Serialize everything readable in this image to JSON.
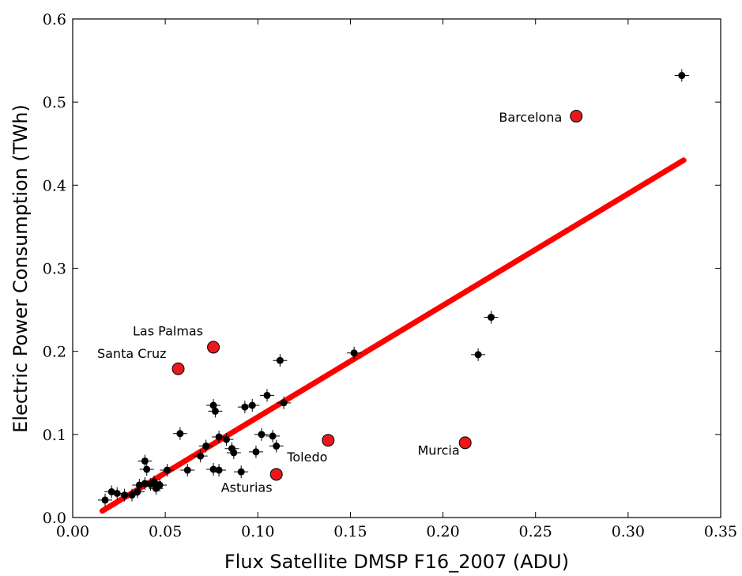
{
  "chart_data": {
    "type": "scatter",
    "xlabel": "Flux Satellite DMSP F16_2007 (ADU)",
    "ylabel": "Electric Power Consumption (TWh)",
    "xlim": [
      0,
      0.35
    ],
    "ylim": [
      0,
      0.6
    ],
    "xticks": [
      {
        "value": 0,
        "label": "0.00"
      },
      0.05,
      {
        "value": 0.1,
        "label": "0.10"
      },
      0.15,
      {
        "value": 0.2,
        "label": "0.20"
      },
      0.25,
      {
        "value": 0.3,
        "label": "0.30"
      },
      0.35
    ],
    "yticks": [
      {
        "value": 0,
        "label": "0.0"
      },
      0.1,
      0.2,
      0.3,
      0.4,
      0.5,
      0.6
    ],
    "series": [
      {
        "color": "#000000",
        "x": [
          0.0175,
          0.021,
          0.024,
          0.028,
          0.032,
          0.035,
          0.036,
          0.039,
          0.039,
          0.04,
          0.042,
          0.044,
          0.045,
          0.047,
          0.051,
          0.058,
          0.062,
          0.069,
          0.072,
          0.076,
          0.076,
          0.077,
          0.079,
          0.079,
          0.083,
          0.086,
          0.087,
          0.091,
          0.093,
          0.097,
          0.099,
          0.102,
          0.105,
          0.108,
          0.11,
          0.112,
          0.114,
          0.152,
          0.219,
          0.226,
          0.329
        ],
        "values": [
          0.021,
          0.031,
          0.029,
          0.027,
          0.027,
          0.031,
          0.039,
          0.041,
          0.068,
          0.058,
          0.04,
          0.043,
          0.035,
          0.039,
          0.057,
          0.101,
          0.057,
          0.074,
          0.086,
          0.058,
          0.135,
          0.128,
          0.057,
          0.097,
          0.094,
          0.083,
          0.078,
          0.055,
          0.133,
          0.135,
          0.079,
          0.1,
          0.147,
          0.098,
          0.086,
          0.189,
          0.138,
          0.198,
          0.196,
          0.241,
          0.532
        ]
      },
      {
        "color": "#e8181c",
        "labels": [
          "Barcelona",
          "Las Palmas",
          "Santa Cruz",
          "Toledo",
          "Asturias",
          "Murcia"
        ],
        "x": [
          0.272,
          0.076,
          0.057,
          0.138,
          0.11,
          0.212
        ],
        "values": [
          0.483,
          0.205,
          0.179,
          0.093,
          0.052,
          0.09
        ]
      }
    ],
    "fit_line": {
      "color": "#ff0000",
      "x": [
        0.016,
        0.33
      ],
      "values": [
        0.008,
        0.43
      ]
    }
  }
}
